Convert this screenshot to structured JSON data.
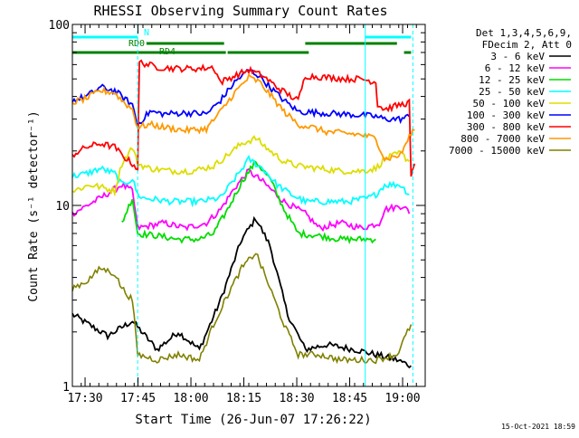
{
  "chart_data": {
    "type": "line",
    "title": "RHESSI Observing Summary Count Rates",
    "xlabel": "Start Time (26-Jun-07 17:26:22)",
    "ylabel": "Count Rate (s⁻¹ detector⁻¹)",
    "yscale": "log",
    "ylim": [
      1,
      100
    ],
    "y_ticks": [
      {
        "value": 1,
        "label": "1"
      },
      {
        "value": 10,
        "label": "10"
      },
      {
        "value": 100,
        "label": "100"
      }
    ],
    "x_range_minutes": [
      0,
      100
    ],
    "x_ticks": [
      {
        "minute": 3.6,
        "label": "17:30"
      },
      {
        "minute": 18.6,
        "label": "17:45"
      },
      {
        "minute": 33.6,
        "label": "18:00"
      },
      {
        "minute": 48.6,
        "label": "18:15"
      },
      {
        "minute": 63.6,
        "label": "18:30"
      },
      {
        "minute": 78.6,
        "label": "18:45"
      },
      {
        "minute": 93.6,
        "label": "19:00"
      }
    ],
    "legend_header": [
      "Det 1,3,4,5,6,9,",
      "FDecim 2, Att 0"
    ],
    "legend_position": "right",
    "footer_date": "15-Oct-2021 18:59",
    "series": [
      {
        "name": "3 - 6 keV",
        "color": "#000000",
        "points": [
          [
            0,
            2.5
          ],
          [
            10,
            1.9
          ],
          [
            17,
            2.3
          ],
          [
            24,
            1.6
          ],
          [
            30,
            2.0
          ],
          [
            36,
            1.6
          ],
          [
            42,
            3.0
          ],
          [
            48,
            6.5
          ],
          [
            52,
            8.5
          ],
          [
            56,
            6.0
          ],
          [
            61,
            2.5
          ],
          [
            66,
            1.6
          ],
          [
            72,
            1.7
          ],
          [
            80,
            1.6
          ],
          [
            86,
            1.5
          ],
          [
            92,
            1.4
          ],
          [
            96,
            1.3
          ]
        ]
      },
      {
        "name": "6 - 12 keV",
        "color": "#ff00ff",
        "points": [
          [
            0,
            9.0
          ],
          [
            8,
            11.0
          ],
          [
            14,
            13.0
          ],
          [
            17,
            12.0
          ],
          [
            18.5,
            7.5
          ],
          [
            26,
            8.0
          ],
          [
            32,
            7.5
          ],
          [
            38,
            8.0
          ],
          [
            42,
            9.5
          ],
          [
            46,
            12.5
          ],
          [
            50,
            15.5
          ],
          [
            54,
            13.5
          ],
          [
            60,
            10.5
          ],
          [
            66,
            9.0
          ],
          [
            70,
            7.5
          ],
          [
            76,
            8.0
          ],
          [
            82,
            7.5
          ],
          [
            87,
            8.0
          ],
          [
            88.5,
            9.5
          ],
          [
            94,
            10.0
          ],
          [
            95.5,
            9.0
          ]
        ]
      },
      {
        "name": "12 - 25 keV",
        "color": "#00dd00",
        "points": [
          [
            14,
            8.0
          ],
          [
            17,
            11.0
          ],
          [
            18.5,
            7.0
          ],
          [
            24,
            6.8
          ],
          [
            30,
            6.5
          ],
          [
            36,
            6.5
          ],
          [
            40,
            7.0
          ],
          [
            44,
            9.5
          ],
          [
            48,
            13.5
          ],
          [
            52,
            17.5
          ],
          [
            56,
            14.0
          ],
          [
            60,
            9.5
          ],
          [
            64,
            7.0
          ],
          [
            70,
            6.8
          ],
          [
            76,
            6.5
          ],
          [
            82,
            6.5
          ],
          [
            86,
            6.5
          ]
        ]
      },
      {
        "name": "25 - 50 keV",
        "color": "#00ffff",
        "points": [
          [
            0,
            14.5
          ],
          [
            4,
            15.0
          ],
          [
            8,
            16.0
          ],
          [
            12,
            15.0
          ],
          [
            14,
            13.0
          ],
          [
            17,
            14.0
          ],
          [
            18.5,
            11.5
          ],
          [
            20,
            11.0
          ],
          [
            28,
            10.5
          ],
          [
            36,
            10.5
          ],
          [
            42,
            11.0
          ],
          [
            46,
            14.0
          ],
          [
            50,
            18.0
          ],
          [
            54,
            16.0
          ],
          [
            58,
            13.0
          ],
          [
            62,
            11.5
          ],
          [
            66,
            10.5
          ],
          [
            72,
            10.5
          ],
          [
            78,
            10.5
          ],
          [
            84,
            11.0
          ],
          [
            86,
            11.5
          ],
          [
            88.5,
            13.0
          ],
          [
            93,
            13.0
          ],
          [
            95.5,
            11.5
          ]
        ]
      },
      {
        "name": "50 - 100 keV",
        "color": "#dddd00",
        "points": [
          [
            0,
            12.0
          ],
          [
            5,
            13.0
          ],
          [
            9,
            12.5
          ],
          [
            12,
            12.0
          ],
          [
            14,
            17.0
          ],
          [
            17,
            21.0
          ],
          [
            18.5,
            17.0
          ],
          [
            22,
            16.0
          ],
          [
            28,
            15.5
          ],
          [
            34,
            15.5
          ],
          [
            40,
            16.5
          ],
          [
            44,
            19.0
          ],
          [
            48,
            22.0
          ],
          [
            52,
            23.5
          ],
          [
            56,
            20.0
          ],
          [
            60,
            17.5
          ],
          [
            64,
            16.5
          ],
          [
            70,
            16.0
          ],
          [
            76,
            15.5
          ],
          [
            82,
            15.5
          ],
          [
            86,
            16.0
          ],
          [
            88.5,
            18.0
          ],
          [
            93,
            19.5
          ],
          [
            95.5,
            17.5
          ]
        ]
      },
      {
        "name": "100 - 300 keV",
        "color": "#0000ff",
        "points": [
          [
            0,
            38.0
          ],
          [
            4,
            40.0
          ],
          [
            8,
            45.0
          ],
          [
            12,
            43.0
          ],
          [
            14,
            40.0
          ],
          [
            17,
            36.0
          ],
          [
            18.5,
            28.0
          ],
          [
            22,
            33.0
          ],
          [
            26,
            32.0
          ],
          [
            32,
            32.5
          ],
          [
            38,
            32.0
          ],
          [
            42,
            38.0
          ],
          [
            46,
            48.0
          ],
          [
            50,
            56.0
          ],
          [
            53,
            52.0
          ],
          [
            56,
            45.0
          ],
          [
            60,
            38.0
          ],
          [
            64,
            33.0
          ],
          [
            70,
            32.5
          ],
          [
            76,
            32.0
          ],
          [
            82,
            31.5
          ],
          [
            86,
            31.0
          ],
          [
            88.5,
            30.0
          ],
          [
            93,
            30.0
          ],
          [
            95.5,
            31.0
          ]
        ]
      },
      {
        "name": "300 - 800 keV",
        "color": "#ff0000",
        "points": [
          [
            0,
            19.0
          ],
          [
            4,
            21.0
          ],
          [
            8,
            22.0
          ],
          [
            12,
            21.0
          ],
          [
            14,
            19.0
          ],
          [
            17,
            17.0
          ],
          [
            18.5,
            16.0
          ],
          [
            19,
            62.0
          ],
          [
            24,
            58.0
          ],
          [
            30,
            57.0
          ],
          [
            36,
            57.0
          ],
          [
            40,
            58.0
          ],
          [
            42,
            48.0
          ],
          [
            46,
            52.0
          ],
          [
            50,
            56.0
          ],
          [
            54,
            52.0
          ],
          [
            58,
            45.0
          ],
          [
            62,
            40.0
          ],
          [
            64,
            38.0
          ],
          [
            66,
            52.0
          ],
          [
            72,
            51.0
          ],
          [
            78,
            50.0
          ],
          [
            82,
            50.0
          ],
          [
            86,
            48.0
          ],
          [
            86.5,
            36.0
          ],
          [
            88.5,
            34.0
          ],
          [
            93,
            36.0
          ],
          [
            95.5,
            37.0
          ],
          [
            96,
            14.0
          ],
          [
            97,
            17.0
          ]
        ]
      },
      {
        "name": "800 - 7000 keV",
        "color": "#ff9900",
        "points": [
          [
            0,
            37.0
          ],
          [
            4,
            39.0
          ],
          [
            8,
            43.0
          ],
          [
            12,
            42.0
          ],
          [
            14,
            38.0
          ],
          [
            17,
            34.0
          ],
          [
            18.5,
            27.0
          ],
          [
            22,
            28.0
          ],
          [
            26,
            27.0
          ],
          [
            32,
            26.0
          ],
          [
            38,
            26.5
          ],
          [
            42,
            33.0
          ],
          [
            46,
            42.0
          ],
          [
            50,
            51.0
          ],
          [
            53,
            48.0
          ],
          [
            56,
            41.0
          ],
          [
            60,
            33.0
          ],
          [
            64,
            28.0
          ],
          [
            68,
            27.0
          ],
          [
            72,
            25.5
          ],
          [
            78,
            25.0
          ],
          [
            82,
            24.5
          ],
          [
            86,
            23.5
          ],
          [
            88.5,
            18.0
          ],
          [
            93,
            19.0
          ],
          [
            95.5,
            24.0
          ],
          [
            97,
            26.0
          ]
        ]
      },
      {
        "name": "7000 - 15000 keV",
        "color": "#808000",
        "points": [
          [
            0,
            3.5
          ],
          [
            4,
            3.8
          ],
          [
            8,
            4.5
          ],
          [
            12,
            4.2
          ],
          [
            14,
            3.5
          ],
          [
            17,
            3.0
          ],
          [
            18.5,
            1.5
          ],
          [
            24,
            1.4
          ],
          [
            30,
            1.5
          ],
          [
            36,
            1.4
          ],
          [
            40,
            2.2
          ],
          [
            44,
            3.2
          ],
          [
            48,
            4.5
          ],
          [
            52,
            5.5
          ],
          [
            56,
            3.5
          ],
          [
            60,
            2.2
          ],
          [
            64,
            1.5
          ],
          [
            70,
            1.5
          ],
          [
            76,
            1.4
          ],
          [
            82,
            1.4
          ],
          [
            86,
            1.4
          ],
          [
            92,
            1.5
          ],
          [
            96,
            2.2
          ]
        ]
      }
    ],
    "annotation_bars": [
      {
        "label": "N",
        "color": "#00ffff",
        "segments": [
          [
            0,
            18.5
          ],
          [
            83,
            96
          ]
        ]
      },
      {
        "label": "RD0",
        "color": "#008000",
        "segments": [
          [
            21,
            43
          ],
          [
            66,
            92
          ]
        ]
      },
      {
        "label": "RD4",
        "color": "#008000",
        "segments": [
          [
            0,
            43.5
          ],
          [
            44,
            67
          ],
          [
            94,
            96
          ]
        ]
      }
    ],
    "vertical_markers": [
      {
        "minute": 18.5,
        "color": "#00ffff",
        "style": "dashed"
      },
      {
        "minute": 83.0,
        "color": "#00ffff",
        "style": "solid"
      },
      {
        "minute": 96.5,
        "color": "#00ffff",
        "style": "dashed"
      }
    ]
  }
}
